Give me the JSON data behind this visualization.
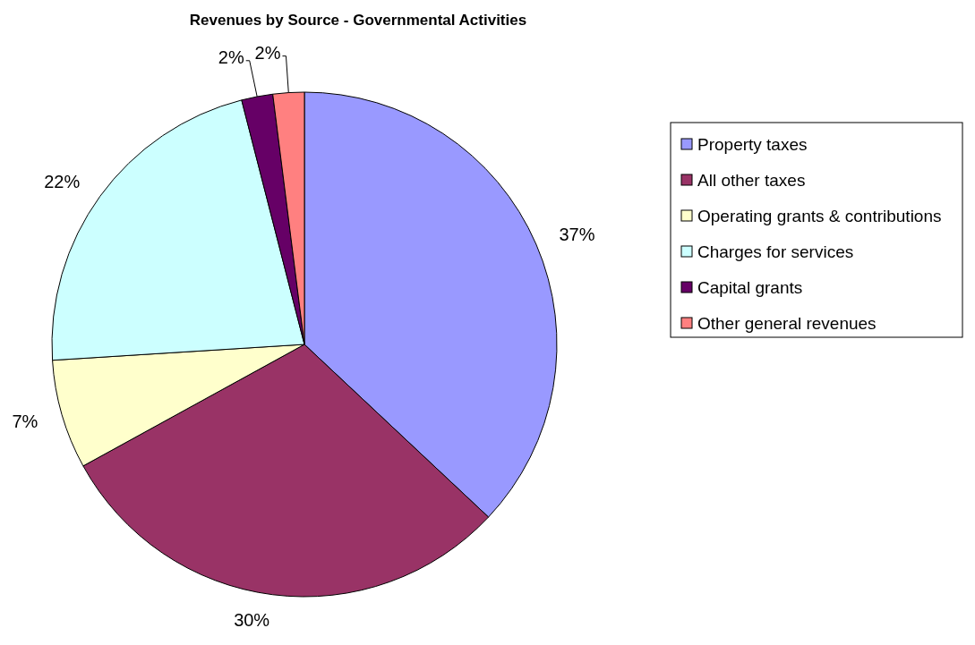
{
  "chart_data": {
    "type": "pie",
    "title": "Revenues by Source - Governmental Activities",
    "categories": [
      "Property taxes",
      "All other taxes",
      "Operating grants & contributions",
      "Charges for services",
      "Capital grants",
      "Other general revenues"
    ],
    "values": [
      37,
      30,
      7,
      22,
      2,
      2
    ],
    "colors": [
      "#9999ff",
      "#993366",
      "#ffffcc",
      "#ccffff",
      "#660066",
      "#ff8080"
    ],
    "value_labels": [
      "37%",
      "30%",
      "7%",
      "22%",
      "2%",
      "2%"
    ],
    "legend": "right"
  }
}
